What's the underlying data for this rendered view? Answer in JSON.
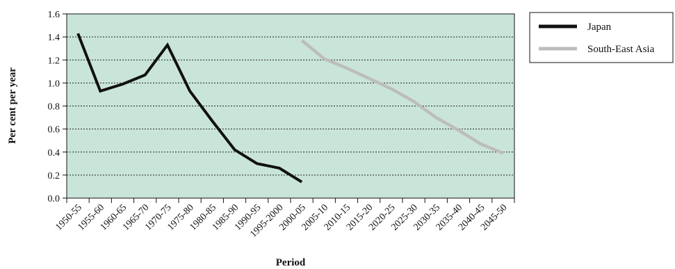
{
  "chart_data": {
    "type": "line",
    "categories": [
      "1950-55",
      "1955-60",
      "1960-65",
      "1965-70",
      "1970-75",
      "1975-80",
      "1980-85",
      "1985-90",
      "1990-95",
      "1995-2000",
      "2000-05",
      "2005-10",
      "2010-15",
      "2015-20",
      "2020-25",
      "2025-30",
      "2030-35",
      "2035-40",
      "2040-45",
      "2045-50"
    ],
    "xlabel": "Period",
    "ylabel": "Per cent per year",
    "ylim": [
      0,
      1.6
    ],
    "yticks": [
      "0.0",
      "0.2",
      "0.4",
      "0.6",
      "0.8",
      "1.0",
      "1.2",
      "1.4",
      "1.6"
    ],
    "grid": "horizontal dotted",
    "legend_position": "right",
    "plot_background": "#c9e5d9",
    "series": [
      {
        "name": "Japan",
        "color": "#111111",
        "values": [
          1.43,
          0.93,
          0.99,
          1.07,
          1.33,
          0.93,
          0.67,
          0.42,
          0.3,
          0.26,
          0.14,
          null,
          null,
          null,
          null,
          null,
          null,
          null,
          null,
          null
        ]
      },
      {
        "name": "South-East Asia",
        "color": "#bdbdbd",
        "values": [
          null,
          null,
          null,
          null,
          null,
          null,
          null,
          null,
          null,
          null,
          1.37,
          1.21,
          1.13,
          1.04,
          0.95,
          0.84,
          0.7,
          0.59,
          0.47,
          0.39
        ]
      }
    ]
  }
}
